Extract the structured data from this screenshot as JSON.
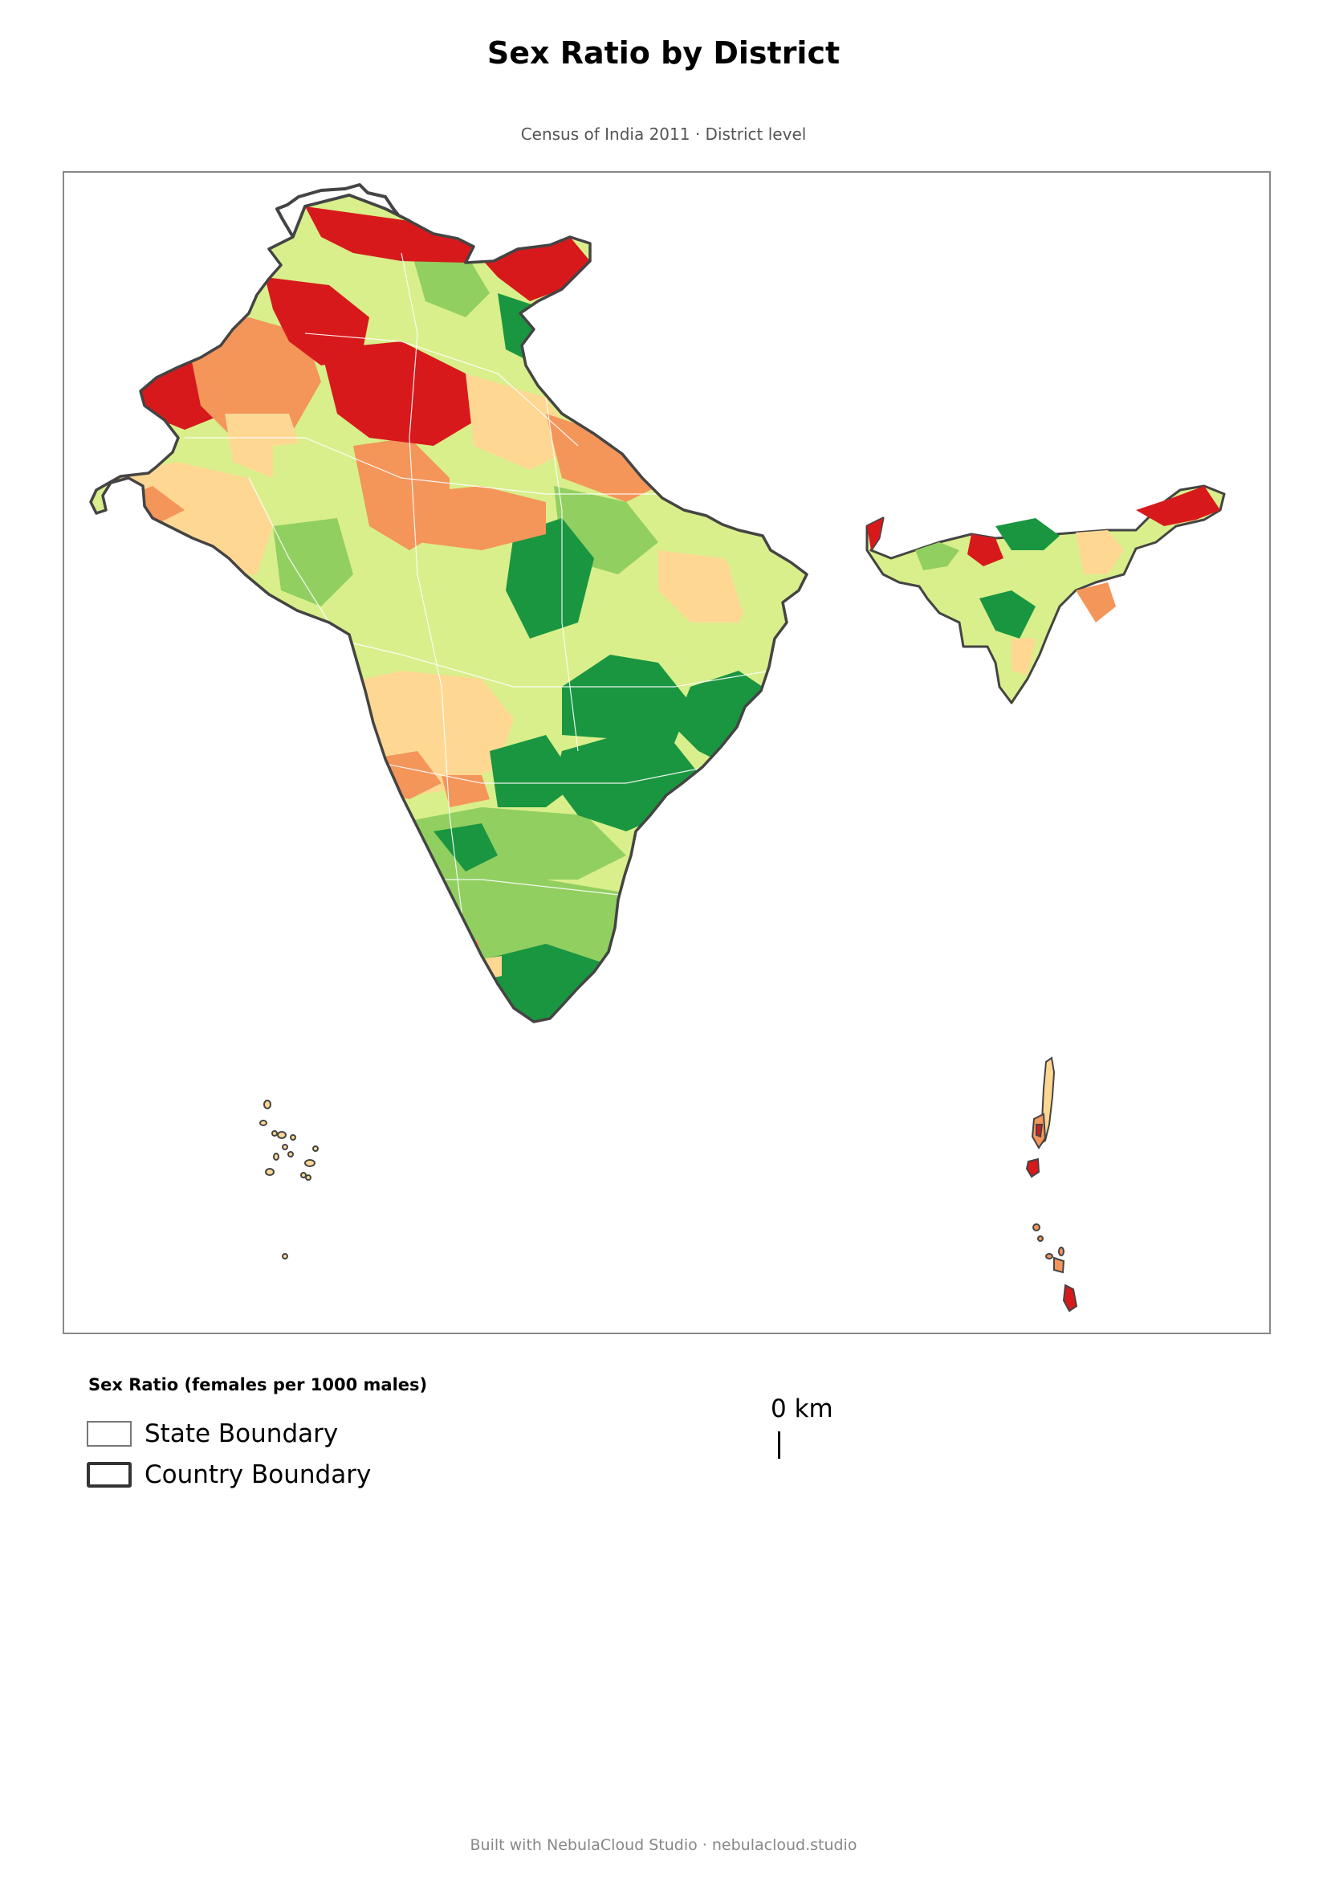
{
  "title": "Sex Ratio by District",
  "subtitle": "Census of India 2011 · District level",
  "legend": {
    "title": "Sex Ratio (females per 1000 males)",
    "items": [
      {
        "label": "State Boundary",
        "stroke": "#666666",
        "stroke_width": "thin"
      },
      {
        "label": "Country Boundary",
        "stroke": "#333333",
        "stroke_width": "thick"
      }
    ]
  },
  "scale_bar": {
    "label": "0 km"
  },
  "footer": "Built with NebulaCloud Studio · nebulacloud.studio",
  "colors": {
    "very_low": "#d7191c",
    "low": "#f4955a",
    "below_avg": "#fed893",
    "above_avg": "#d9ef8b",
    "high": "#91cf60",
    "very_high": "#1a9641",
    "country_border": "#444444",
    "state_border": "#ffffff",
    "unknown": "#ffffff"
  }
}
